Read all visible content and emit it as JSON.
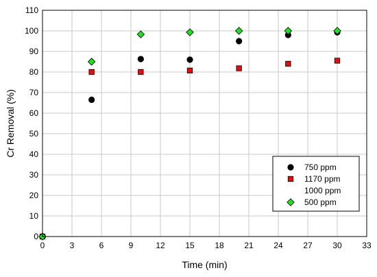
{
  "chart_data": {
    "type": "scatter",
    "xlabel": "Time (min)",
    "ylabel": "Cr Removal (%)",
    "xlim": [
      0,
      33
    ],
    "ylim": [
      0,
      110
    ],
    "xticks": [
      "0",
      "3",
      "6",
      "9",
      "12",
      "15",
      "18",
      "21",
      "24",
      "27",
      "30",
      "33"
    ],
    "yticks": [
      "0",
      "10",
      "20",
      "30",
      "40",
      "50",
      "60",
      "70",
      "80",
      "90",
      "100",
      "110"
    ],
    "grid": true,
    "legend_position": "bottom-right",
    "series": [
      {
        "name": "750 ppm",
        "marker": "circle",
        "color": "#000000",
        "x": [
          0,
          5,
          10,
          15,
          20,
          25,
          30
        ],
        "y": [
          0,
          66.5,
          86.3,
          86,
          95,
          98,
          99.3
        ]
      },
      {
        "name": "1170 ppm",
        "marker": "square",
        "color": "#e01010",
        "x": [
          0,
          5,
          10,
          15,
          20,
          25,
          30
        ],
        "y": [
          0,
          80,
          80,
          80.7,
          81.8,
          84,
          85.5
        ]
      },
      {
        "name": "1000 ppm",
        "marker": "none",
        "color": "#000000",
        "x": [],
        "y": []
      },
      {
        "name": "500 ppm",
        "marker": "diamond",
        "color": "#22dd22",
        "x": [
          0,
          5,
          10,
          15,
          20,
          25,
          30
        ],
        "y": [
          0,
          85,
          98.3,
          99.3,
          100,
          100,
          100
        ]
      }
    ]
  }
}
